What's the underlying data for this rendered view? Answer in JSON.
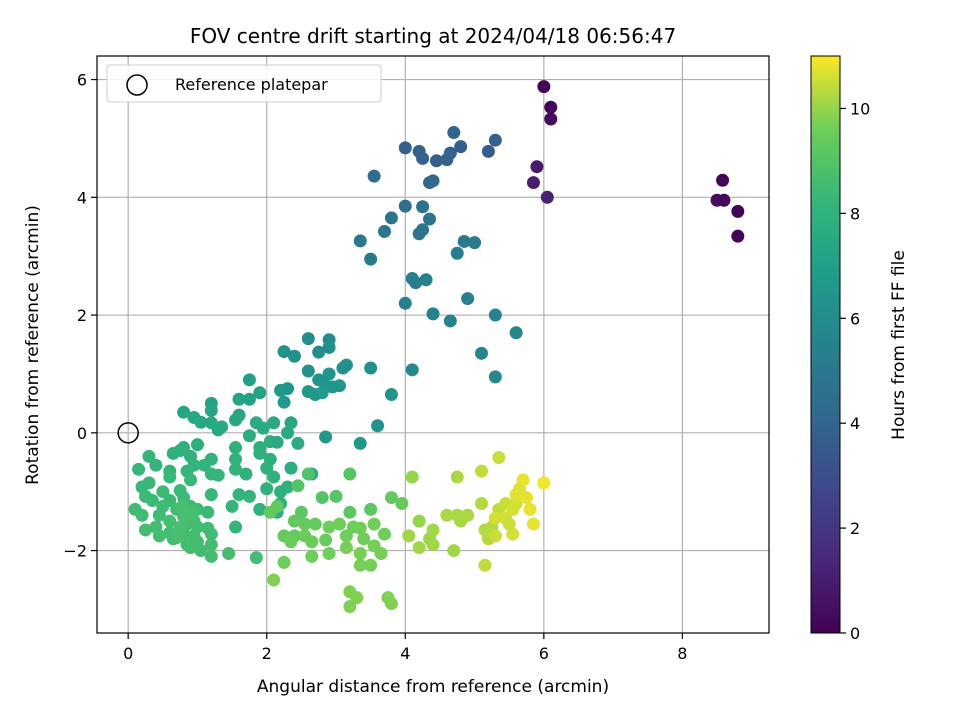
{
  "chart_data": {
    "type": "scatter",
    "title": "FOV centre drift starting at 2024/04/18 06:56:47",
    "xlabel": "Angular distance from reference (arcmin)",
    "ylabel": "Rotation from reference (arcmin)",
    "xlim": [
      -0.45,
      9.25
    ],
    "ylim": [
      -3.4,
      6.4
    ],
    "xticks": [
      0,
      2,
      4,
      6,
      8
    ],
    "xtick_labels": [
      "0",
      "2",
      "4",
      "6",
      "8"
    ],
    "yticks": [
      -2,
      0,
      2,
      4,
      6
    ],
    "ytick_labels": [
      "−2",
      "0",
      "2",
      "4",
      "6"
    ],
    "grid": true,
    "legend": {
      "position": "top-left",
      "entries": [
        "Reference platepar"
      ]
    },
    "reference_point": {
      "x": 0,
      "y": 0
    },
    "colorbar": {
      "label": "Hours from first FF file",
      "colormap": "viridis",
      "range": [
        0,
        11
      ],
      "ticks": [
        0,
        2,
        4,
        6,
        8,
        10
      ],
      "tick_labels": [
        "0",
        "2",
        "4",
        "6",
        "8",
        "10"
      ]
    },
    "points": [
      [
        6.0,
        5.88,
        0.1
      ],
      [
        6.1,
        5.53,
        0.2
      ],
      [
        6.1,
        5.33,
        0.3
      ],
      [
        5.9,
        4.52,
        0.9
      ],
      [
        5.85,
        4.25,
        1.0
      ],
      [
        6.05,
        4.0,
        1.2
      ],
      [
        8.58,
        4.29,
        0.2
      ],
      [
        8.5,
        3.95,
        0.4
      ],
      [
        8.6,
        3.95,
        0.3
      ],
      [
        8.8,
        3.76,
        0.1
      ],
      [
        8.8,
        3.34,
        0.1
      ],
      [
        4.7,
        5.1,
        4.1
      ],
      [
        5.3,
        4.97,
        3.8
      ],
      [
        5.2,
        4.78,
        3.6
      ],
      [
        4.8,
        4.86,
        3.7
      ],
      [
        4.0,
        4.84,
        3.8
      ],
      [
        4.2,
        4.78,
        3.9
      ],
      [
        4.25,
        4.66,
        3.8
      ],
      [
        4.45,
        4.62,
        3.7
      ],
      [
        4.6,
        4.64,
        3.9
      ],
      [
        4.65,
        4.75,
        3.8
      ],
      [
        4.4,
        4.28,
        4.1
      ],
      [
        4.35,
        4.25,
        4.2
      ],
      [
        3.55,
        4.36,
        4.4
      ],
      [
        4.0,
        3.85,
        4.5
      ],
      [
        4.25,
        3.84,
        4.6
      ],
      [
        4.35,
        3.63,
        4.7
      ],
      [
        3.8,
        3.65,
        4.7
      ],
      [
        4.25,
        3.45,
        4.8
      ],
      [
        4.2,
        3.38,
        4.8
      ],
      [
        3.7,
        3.42,
        4.9
      ],
      [
        3.35,
        3.26,
        5.0
      ],
      [
        4.85,
        3.25,
        5.0
      ],
      [
        5.0,
        3.23,
        5.1
      ],
      [
        4.75,
        3.05,
        5.2
      ],
      [
        3.5,
        2.95,
        5.1
      ],
      [
        4.1,
        2.62,
        5.3
      ],
      [
        4.3,
        2.6,
        5.4
      ],
      [
        4.15,
        2.55,
        5.3
      ],
      [
        4.0,
        2.2,
        5.4
      ],
      [
        4.9,
        2.28,
        5.4
      ],
      [
        4.4,
        2.02,
        5.5
      ],
      [
        4.65,
        1.9,
        5.6
      ],
      [
        5.3,
        2.0,
        5.6
      ],
      [
        5.6,
        1.7,
        5.7
      ],
      [
        5.1,
        1.35,
        5.6
      ],
      [
        4.1,
        1.07,
        5.8
      ],
      [
        5.3,
        0.95,
        5.8
      ],
      [
        2.6,
        1.6,
        6.0
      ],
      [
        2.9,
        1.58,
        6.0
      ],
      [
        2.9,
        1.45,
        6.2
      ],
      [
        2.25,
        1.38,
        6.2
      ],
      [
        2.75,
        1.37,
        6.1
      ],
      [
        2.4,
        1.3,
        6.2
      ],
      [
        3.1,
        1.1,
        6.3
      ],
      [
        3.15,
        1.15,
        6.3
      ],
      [
        3.5,
        1.1,
        6.2
      ],
      [
        2.6,
        1.05,
        6.3
      ],
      [
        2.9,
        1.0,
        6.4
      ],
      [
        2.75,
        0.9,
        6.4
      ],
      [
        2.85,
        0.8,
        6.5
      ],
      [
        2.95,
        0.78,
        6.5
      ],
      [
        3.05,
        0.8,
        6.5
      ],
      [
        2.3,
        0.75,
        6.5
      ],
      [
        2.2,
        0.72,
        6.6
      ],
      [
        2.6,
        0.7,
        6.6
      ],
      [
        2.7,
        0.65,
        6.6
      ],
      [
        2.8,
        0.68,
        6.7
      ],
      [
        2.25,
        0.52,
        6.7
      ],
      [
        3.8,
        0.65,
        6.4
      ],
      [
        3.6,
        0.12,
        6.4
      ],
      [
        2.85,
        -0.07,
        6.7
      ],
      [
        3.35,
        -0.18,
        6.6
      ],
      [
        1.75,
        0.9,
        7.0
      ],
      [
        1.9,
        0.68,
        7.1
      ],
      [
        1.75,
        0.57,
        7.1
      ],
      [
        1.6,
        0.57,
        7.2
      ],
      [
        1.2,
        0.5,
        7.2
      ],
      [
        1.2,
        0.38,
        7.3
      ],
      [
        0.8,
        0.35,
        7.3
      ],
      [
        1.6,
        0.3,
        7.3
      ],
      [
        1.55,
        0.22,
        7.4
      ],
      [
        0.95,
        0.26,
        7.4
      ],
      [
        1.05,
        0.18,
        7.4
      ],
      [
        1.2,
        0.17,
        7.5
      ],
      [
        1.35,
        0.1,
        7.5
      ],
      [
        1.3,
        0.05,
        7.5
      ],
      [
        1.85,
        0.17,
        7.6
      ],
      [
        2.1,
        0.17,
        7.5
      ],
      [
        2.35,
        0.17,
        7.4
      ],
      [
        1.95,
        0.08,
        7.6
      ],
      [
        2.3,
        0.0,
        7.5
      ],
      [
        1.75,
        -0.05,
        7.7
      ],
      [
        2.05,
        -0.15,
        7.7
      ],
      [
        2.15,
        -0.16,
        7.6
      ],
      [
        1.0,
        -0.2,
        7.8
      ],
      [
        1.9,
        -0.25,
        7.8
      ],
      [
        1.55,
        -0.25,
        7.9
      ],
      [
        2.45,
        -0.18,
        7.6
      ],
      [
        0.8,
        -0.25,
        7.9
      ],
      [
        0.75,
        -0.3,
        7.9
      ],
      [
        0.65,
        -0.35,
        8.0
      ],
      [
        0.9,
        -0.4,
        8.0
      ],
      [
        1.9,
        -0.35,
        7.9
      ],
      [
        1.55,
        -0.45,
        8.0
      ],
      [
        2.05,
        -0.45,
        7.8
      ],
      [
        1.2,
        -0.45,
        8.0
      ],
      [
        0.3,
        -0.4,
        8.1
      ],
      [
        0.95,
        -0.55,
        8.1
      ],
      [
        1.1,
        -0.55,
        8.1
      ],
      [
        2.0,
        -0.6,
        7.9
      ],
      [
        1.55,
        -0.62,
        8.1
      ],
      [
        1.7,
        -0.7,
        8.0
      ],
      [
        2.35,
        -0.6,
        7.7
      ],
      [
        2.65,
        -0.7,
        7.6
      ],
      [
        0.4,
        -0.55,
        8.1
      ],
      [
        0.6,
        -0.65,
        8.2
      ],
      [
        0.85,
        -0.65,
        8.2
      ],
      [
        1.2,
        -0.7,
        8.2
      ],
      [
        1.3,
        -0.72,
        8.2
      ],
      [
        0.15,
        -0.62,
        8.2
      ],
      [
        0.6,
        -0.75,
        8.3
      ],
      [
        0.9,
        -0.8,
        8.3
      ],
      [
        0.3,
        -0.85,
        8.3
      ],
      [
        0.2,
        -0.92,
        8.3
      ],
      [
        2.1,
        -0.75,
        7.9
      ],
      [
        2.0,
        -0.95,
        7.9
      ],
      [
        2.2,
        -1.0,
        7.8
      ],
      [
        0.5,
        -1.0,
        8.4
      ],
      [
        0.75,
        -0.98,
        8.4
      ],
      [
        0.25,
        -1.08,
        8.4
      ],
      [
        0.35,
        -1.15,
        8.4
      ],
      [
        0.6,
        -1.15,
        8.4
      ],
      [
        0.8,
        -1.1,
        8.4
      ],
      [
        1.2,
        -1.05,
        8.3
      ],
      [
        1.6,
        -1.05,
        8.2
      ],
      [
        1.75,
        -1.08,
        8.1
      ],
      [
        2.3,
        -0.92,
        7.9
      ],
      [
        0.5,
        -1.25,
        8.5
      ],
      [
        0.7,
        -1.3,
        8.5
      ],
      [
        0.9,
        -1.25,
        8.5
      ],
      [
        1.0,
        -1.3,
        8.5
      ],
      [
        1.5,
        -1.25,
        8.2
      ],
      [
        0.1,
        -1.3,
        8.5
      ],
      [
        0.2,
        -1.4,
        8.5
      ],
      [
        0.45,
        -1.4,
        8.5
      ],
      [
        0.8,
        -1.42,
        8.5
      ],
      [
        0.95,
        -1.5,
        8.6
      ],
      [
        1.15,
        -1.35,
        8.4
      ],
      [
        1.9,
        -1.3,
        8.0
      ],
      [
        2.2,
        -1.2,
        8.0
      ],
      [
        2.15,
        -1.35,
        7.9
      ],
      [
        0.6,
        -1.5,
        8.6
      ],
      [
        0.85,
        -1.55,
        8.6
      ],
      [
        1.0,
        -1.6,
        8.6
      ],
      [
        0.4,
        -1.6,
        8.6
      ],
      [
        1.15,
        -1.62,
        8.5
      ],
      [
        1.55,
        -1.6,
        8.2
      ],
      [
        0.25,
        -1.65,
        8.6
      ],
      [
        0.6,
        -1.7,
        8.6
      ],
      [
        0.8,
        -1.7,
        8.6
      ],
      [
        0.95,
        -1.75,
        8.6
      ],
      [
        1.2,
        -1.72,
        8.5
      ],
      [
        0.45,
        -1.75,
        8.6
      ],
      [
        0.65,
        -1.8,
        8.6
      ],
      [
        1.0,
        -1.85,
        8.6
      ],
      [
        1.2,
        -1.9,
        8.6
      ],
      [
        0.85,
        -1.9,
        8.6
      ],
      [
        0.9,
        -1.95,
        8.6
      ],
      [
        1.05,
        -2.0,
        8.6
      ],
      [
        1.2,
        -2.1,
        8.6
      ],
      [
        1.45,
        -2.05,
        8.6
      ],
      [
        1.85,
        -2.12,
        8.6
      ],
      [
        0.7,
        -1.78,
        8.7
      ],
      [
        0.75,
        -1.6,
        8.7
      ],
      [
        0.82,
        -1.45,
        8.7
      ],
      [
        0.9,
        -1.35,
        8.7
      ],
      [
        0.78,
        -1.25,
        8.7
      ],
      [
        2.6,
        -0.7,
        8.9
      ],
      [
        3.2,
        -0.7,
        9.1
      ],
      [
        2.45,
        -0.9,
        9.0
      ],
      [
        2.8,
        -1.1,
        9.0
      ],
      [
        3.0,
        -1.08,
        9.1
      ],
      [
        3.8,
        -1.1,
        9.3
      ],
      [
        3.95,
        -1.2,
        9.4
      ],
      [
        3.5,
        -1.3,
        9.2
      ],
      [
        3.2,
        -1.35,
        9.2
      ],
      [
        2.5,
        -1.35,
        9.2
      ],
      [
        2.15,
        -1.25,
        9.3
      ],
      [
        2.05,
        -1.35,
        9.4
      ],
      [
        2.4,
        -1.5,
        9.3
      ],
      [
        2.55,
        -1.55,
        9.4
      ],
      [
        2.7,
        -1.55,
        9.4
      ],
      [
        2.25,
        -1.75,
        9.4
      ],
      [
        2.4,
        -1.75,
        9.4
      ],
      [
        2.35,
        -1.85,
        9.5
      ],
      [
        2.55,
        -1.75,
        9.5
      ],
      [
        2.65,
        -1.85,
        9.5
      ],
      [
        2.9,
        -1.6,
        9.6
      ],
      [
        3.05,
        -1.55,
        9.6
      ],
      [
        3.25,
        -1.6,
        9.6
      ],
      [
        3.35,
        -1.62,
        9.6
      ],
      [
        3.55,
        -1.55,
        9.6
      ],
      [
        3.15,
        -1.75,
        9.6
      ],
      [
        3.4,
        -1.8,
        9.6
      ],
      [
        3.7,
        -1.72,
        9.6
      ],
      [
        2.85,
        -1.82,
        9.5
      ],
      [
        3.15,
        -1.95,
        9.7
      ],
      [
        2.25,
        -2.2,
        9.6
      ],
      [
        2.65,
        -2.1,
        9.6
      ],
      [
        2.9,
        -2.05,
        9.6
      ],
      [
        3.35,
        -2.05,
        9.7
      ],
      [
        3.55,
        -1.92,
        9.7
      ],
      [
        3.65,
        -2.05,
        9.7
      ],
      [
        3.35,
        -2.25,
        9.7
      ],
      [
        3.5,
        -2.25,
        9.7
      ],
      [
        2.1,
        -2.5,
        9.8
      ],
      [
        3.2,
        -2.7,
        9.8
      ],
      [
        3.3,
        -2.8,
        9.8
      ],
      [
        3.2,
        -2.95,
        9.8
      ],
      [
        3.8,
        -2.9,
        9.8
      ],
      [
        3.75,
        -2.8,
        9.8
      ],
      [
        4.1,
        -0.75,
        10.0
      ],
      [
        4.2,
        -1.5,
        10.0
      ],
      [
        4.05,
        -1.75,
        10.1
      ],
      [
        4.35,
        -1.8,
        10.1
      ],
      [
        4.4,
        -1.65,
        10.1
      ],
      [
        4.4,
        -1.9,
        10.1
      ],
      [
        4.2,
        -1.95,
        10.1
      ],
      [
        4.7,
        -2.0,
        10.1
      ],
      [
        4.75,
        -0.75,
        10.2
      ],
      [
        4.6,
        -1.4,
        10.2
      ],
      [
        4.75,
        -1.4,
        10.2
      ],
      [
        4.8,
        -1.5,
        10.2
      ],
      [
        5.1,
        -1.2,
        10.3
      ],
      [
        5.15,
        -1.65,
        10.3
      ],
      [
        5.25,
        -1.6,
        10.3
      ],
      [
        5.2,
        -1.8,
        10.3
      ],
      [
        5.15,
        -2.25,
        10.4
      ],
      [
        5.1,
        -0.65,
        10.4
      ],
      [
        5.35,
        -0.42,
        10.5
      ],
      [
        5.35,
        -1.3,
        10.4
      ],
      [
        5.45,
        -1.2,
        10.5
      ],
      [
        5.55,
        -1.3,
        10.6
      ],
      [
        5.6,
        -1.2,
        10.6
      ],
      [
        5.6,
        -1.05,
        10.7
      ],
      [
        5.65,
        -0.95,
        10.7
      ],
      [
        5.7,
        -0.8,
        10.8
      ],
      [
        5.75,
        -1.1,
        10.8
      ],
      [
        5.8,
        -1.3,
        10.8
      ],
      [
        5.85,
        -1.55,
        10.8
      ],
      [
        6.0,
        -0.85,
        10.9
      ],
      [
        5.3,
        -1.45,
        10.6
      ],
      [
        5.45,
        -1.45,
        10.6
      ],
      [
        5.55,
        -1.72,
        10.6
      ],
      [
        5.5,
        -1.55,
        10.5
      ],
      [
        5.3,
        -1.75,
        10.5
      ],
      [
        4.9,
        -1.4,
        10.2
      ]
    ]
  }
}
